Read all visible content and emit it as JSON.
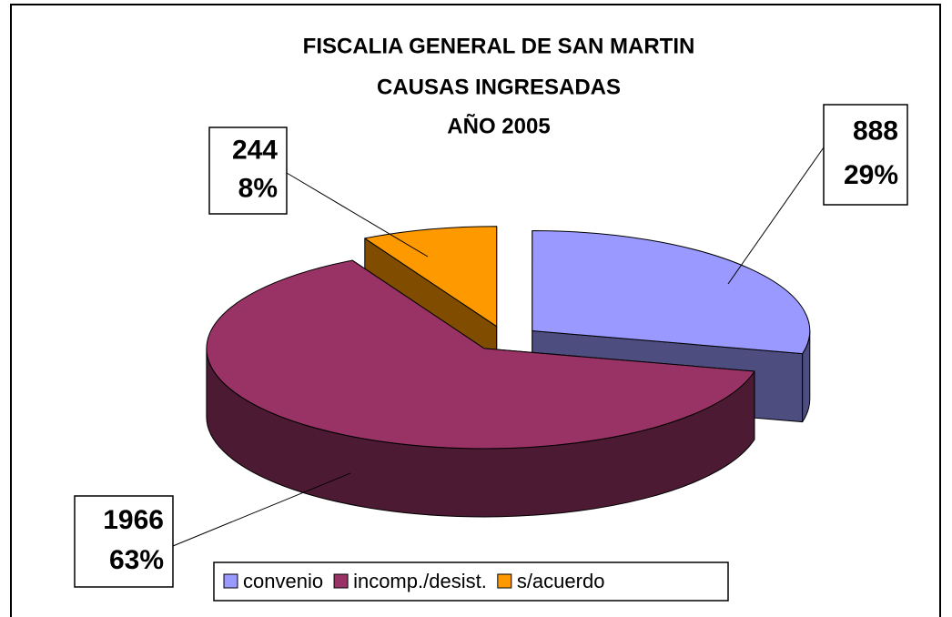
{
  "chart_data": {
    "type": "pie3d",
    "title": [
      "FISCALIA GENERAL DE SAN MARTIN",
      "CAUSAS INGRESADAS",
      "AÑO 2005"
    ],
    "categories": [
      "convenio",
      "incomp./desist.",
      "s/acuerdo"
    ],
    "values": [
      888,
      1966,
      244
    ],
    "percents": [
      29,
      63,
      8
    ],
    "percent_labels": [
      "29%",
      "63%",
      "8%"
    ],
    "colors": [
      "#9999ff",
      "#993366",
      "#ff9900"
    ],
    "side_colors": [
      "#4d4d80",
      "#4d1a33",
      "#804d00"
    ],
    "legend": "bottom"
  }
}
